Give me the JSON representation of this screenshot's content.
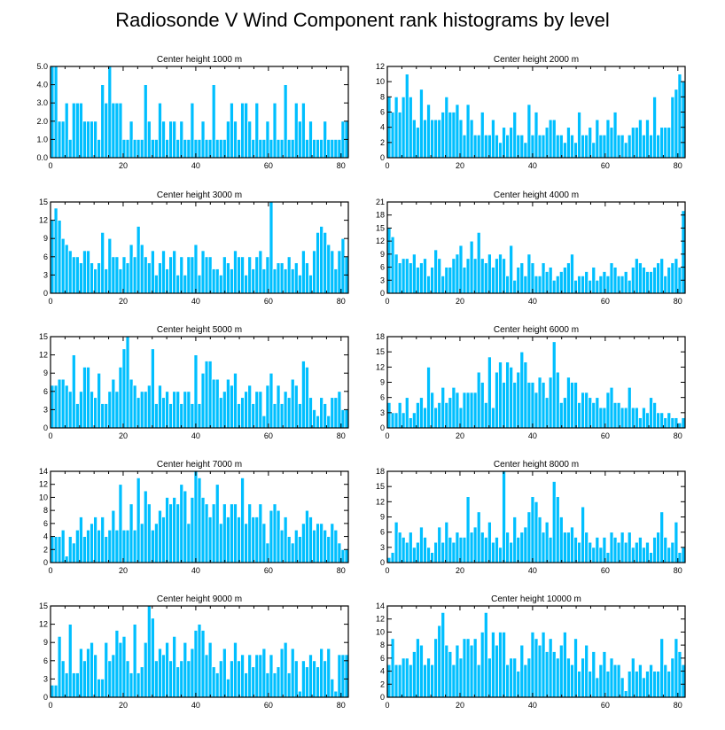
{
  "figure": {
    "title": "Radiosonde V Wind Component rank histograms by level",
    "bar_color": "#00bfff"
  },
  "chart_data": [
    {
      "type": "bar",
      "title": "Center height 1000 m",
      "xlim": [
        0,
        82
      ],
      "xticks": [
        0,
        20,
        40,
        60,
        80
      ],
      "ylim": [
        0,
        5
      ],
      "yticks": [
        "0.0",
        "1.0",
        "2.0",
        "3.0",
        "4.0",
        "5.0"
      ],
      "values": [
        5,
        5,
        2,
        2,
        3,
        1,
        3,
        3,
        3,
        2,
        2,
        2,
        2,
        1,
        4,
        3,
        5,
        3,
        3,
        3,
        1,
        1,
        2,
        1,
        1,
        1,
        4,
        2,
        1,
        1,
        3,
        2,
        1,
        2,
        2,
        1,
        2,
        1,
        1,
        3,
        1,
        1,
        2,
        1,
        1,
        4,
        1,
        1,
        1,
        2,
        3,
        2,
        1,
        3,
        3,
        2,
        1,
        3,
        1,
        1,
        2,
        1,
        3,
        1,
        1,
        4,
        1,
        1,
        3,
        2,
        3,
        1,
        2,
        1,
        1,
        1,
        2,
        1,
        1,
        1,
        1,
        2,
        2
      ]
    },
    {
      "type": "bar",
      "title": "Center height 2000 m",
      "xlim": [
        0,
        82
      ],
      "xticks": [
        0,
        20,
        40,
        60,
        80
      ],
      "ylim": [
        0,
        12
      ],
      "yticks": [
        "0",
        "2",
        "4",
        "6",
        "8",
        "10",
        "12"
      ],
      "values": [
        8,
        6,
        8,
        6,
        8,
        11,
        8,
        5,
        4,
        9,
        5,
        7,
        5,
        5,
        5,
        6,
        8,
        6,
        6,
        7,
        5,
        3,
        7,
        5,
        3,
        3,
        6,
        3,
        3,
        5,
        3,
        2,
        4,
        3,
        4,
        6,
        3,
        3,
        2,
        7,
        3,
        6,
        3,
        3,
        4,
        5,
        5,
        3,
        3,
        2,
        4,
        3,
        2,
        6,
        3,
        3,
        4,
        2,
        5,
        3,
        3,
        5,
        4,
        6,
        3,
        3,
        2,
        3,
        4,
        4,
        5,
        3,
        5,
        3,
        8,
        3,
        4,
        4,
        4,
        8,
        9,
        11,
        10
      ]
    },
    {
      "type": "bar",
      "title": "Center height 3000 m",
      "xlim": [
        0,
        82
      ],
      "xticks": [
        0,
        20,
        40,
        60,
        80
      ],
      "ylim": [
        0,
        15
      ],
      "yticks": [
        "0",
        "3",
        "6",
        "9",
        "12",
        "15"
      ],
      "values": [
        12,
        14,
        12,
        9,
        8,
        7,
        6,
        6,
        5,
        7,
        7,
        5,
        4,
        5,
        10,
        4,
        9,
        6,
        6,
        4,
        6,
        5,
        8,
        6,
        11,
        8,
        6,
        5,
        7,
        3,
        5,
        7,
        4,
        6,
        7,
        3,
        6,
        3,
        6,
        6,
        8,
        3,
        7,
        6,
        6,
        4,
        4,
        3,
        6,
        5,
        4,
        7,
        6,
        6,
        3,
        6,
        4,
        6,
        7,
        4,
        6,
        15,
        4,
        5,
        5,
        4,
        6,
        4,
        5,
        3,
        7,
        5,
        3,
        7,
        10,
        11,
        10,
        8,
        7,
        4,
        7,
        9,
        6
      ]
    },
    {
      "type": "bar",
      "title": "Center height 4000 m",
      "xlim": [
        0,
        82
      ],
      "xticks": [
        0,
        20,
        40,
        60,
        80
      ],
      "ylim": [
        0,
        21
      ],
      "yticks": [
        "0",
        "3",
        "6",
        "9",
        "12",
        "15",
        "18",
        "21"
      ],
      "values": [
        15,
        13,
        9,
        7,
        8,
        8,
        7,
        9,
        6,
        7,
        8,
        4,
        6,
        10,
        8,
        4,
        6,
        6,
        8,
        9,
        11,
        6,
        8,
        12,
        8,
        14,
        8,
        7,
        9,
        6,
        8,
        9,
        8,
        4,
        11,
        3,
        6,
        7,
        4,
        9,
        7,
        4,
        4,
        7,
        5,
        6,
        3,
        4,
        5,
        6,
        7,
        9,
        3,
        4,
        4,
        5,
        3,
        6,
        3,
        4,
        5,
        4,
        7,
        6,
        4,
        4,
        5,
        3,
        6,
        8,
        7,
        6,
        5,
        5,
        6,
        7,
        8,
        4,
        6,
        7,
        8,
        6,
        19
      ]
    },
    {
      "type": "bar",
      "title": "Center height 5000 m",
      "xlim": [
        0,
        82
      ],
      "xticks": [
        0,
        20,
        40,
        60,
        80
      ],
      "ylim": [
        0,
        15
      ],
      "yticks": [
        "0",
        "3",
        "6",
        "9",
        "12",
        "15"
      ],
      "values": [
        7,
        7,
        8,
        8,
        7,
        6,
        12,
        4,
        6,
        10,
        10,
        6,
        5,
        9,
        4,
        4,
        6,
        8,
        6,
        10,
        13,
        15,
        8,
        7,
        5,
        6,
        6,
        7,
        13,
        4,
        7,
        5,
        6,
        4,
        6,
        6,
        4,
        6,
        6,
        4,
        12,
        4,
        9,
        11,
        11,
        8,
        8,
        5,
        6,
        8,
        7,
        9,
        4,
        5,
        6,
        7,
        4,
        6,
        6,
        2,
        7,
        9,
        4,
        7,
        4,
        6,
        5,
        8,
        7,
        4,
        11,
        10,
        5,
        3,
        2,
        5,
        4,
        2,
        5,
        5,
        6,
        3,
        3
      ]
    },
    {
      "type": "bar",
      "title": "Center height 6000 m",
      "xlim": [
        0,
        82
      ],
      "xticks": [
        0,
        20,
        40,
        60,
        80
      ],
      "ylim": [
        0,
        18
      ],
      "yticks": [
        "0",
        "3",
        "6",
        "9",
        "12",
        "15",
        "18"
      ],
      "values": [
        5,
        3,
        3,
        5,
        3,
        6,
        2,
        3,
        5,
        6,
        4,
        12,
        7,
        4,
        5,
        8,
        5,
        6,
        8,
        7,
        4,
        7,
        7,
        7,
        7,
        11,
        9,
        5,
        14,
        4,
        11,
        13,
        9,
        13,
        12,
        9,
        11,
        15,
        13,
        9,
        9,
        7,
        10,
        9,
        6,
        10,
        17,
        11,
        5,
        6,
        10,
        9,
        9,
        5,
        7,
        7,
        6,
        5,
        6,
        4,
        4,
        7,
        8,
        5,
        5,
        4,
        4,
        8,
        4,
        4,
        2,
        4,
        3,
        6,
        5,
        3,
        3,
        2,
        3,
        2,
        2,
        1,
        2
      ]
    },
    {
      "type": "bar",
      "title": "Center height 7000 m",
      "xlim": [
        0,
        82
      ],
      "xticks": [
        0,
        20,
        40,
        60,
        80
      ],
      "ylim": [
        0,
        14
      ],
      "yticks": [
        "0",
        "2",
        "4",
        "6",
        "8",
        "10",
        "12",
        "14"
      ],
      "values": [
        4,
        4,
        4,
        5,
        1,
        4,
        3,
        5,
        7,
        4,
        5,
        6,
        7,
        5,
        7,
        4,
        5,
        8,
        5,
        12,
        5,
        5,
        9,
        5,
        13,
        6,
        11,
        9,
        5,
        6,
        8,
        7,
        10,
        9,
        10,
        9,
        12,
        11,
        6,
        10,
        14,
        13,
        10,
        9,
        7,
        9,
        12,
        6,
        9,
        7,
        9,
        9,
        7,
        13,
        6,
        9,
        7,
        7,
        9,
        6,
        3,
        8,
        9,
        8,
        5,
        7,
        4,
        3,
        5,
        4,
        6,
        8,
        7,
        5,
        6,
        6,
        5,
        4,
        6,
        5,
        3,
        2,
        2
      ]
    },
    {
      "type": "bar",
      "title": "Center height 8000 m",
      "xlim": [
        0,
        82
      ],
      "xticks": [
        0,
        20,
        40,
        60,
        80
      ],
      "ylim": [
        0,
        18
      ],
      "yticks": [
        "0",
        "3",
        "6",
        "9",
        "12",
        "15",
        "18"
      ],
      "values": [
        1,
        2,
        8,
        6,
        5,
        4,
        6,
        3,
        4,
        7,
        5,
        3,
        2,
        4,
        7,
        4,
        8,
        5,
        4,
        6,
        5,
        5,
        13,
        6,
        7,
        10,
        6,
        5,
        8,
        4,
        5,
        3,
        18,
        6,
        4,
        9,
        5,
        6,
        7,
        10,
        13,
        12,
        9,
        6,
        8,
        5,
        16,
        13,
        9,
        6,
        6,
        7,
        5,
        4,
        11,
        6,
        4,
        3,
        5,
        3,
        5,
        2,
        6,
        5,
        4,
        6,
        4,
        6,
        3,
        4,
        5,
        3,
        4,
        2,
        5,
        6,
        10,
        5,
        3,
        4,
        8,
        2,
        3
      ]
    },
    {
      "type": "bar",
      "title": "Center height 9000 m",
      "xlim": [
        0,
        82
      ],
      "xticks": [
        0,
        20,
        40,
        60,
        80
      ],
      "ylim": [
        0,
        15
      ],
      "yticks": [
        "0",
        "3",
        "6",
        "9",
        "12",
        "15"
      ],
      "values": [
        2,
        2,
        10,
        6,
        4,
        12,
        4,
        4,
        8,
        6,
        8,
        9,
        7,
        3,
        3,
        9,
        6,
        7,
        11,
        9,
        10,
        6,
        4,
        12,
        4,
        5,
        9,
        15,
        13,
        6,
        8,
        7,
        9,
        6,
        10,
        5,
        6,
        9,
        6,
        8,
        11,
        12,
        11,
        7,
        9,
        5,
        4,
        6,
        8,
        3,
        6,
        9,
        6,
        7,
        4,
        7,
        5,
        7,
        7,
        8,
        4,
        7,
        4,
        5,
        8,
        9,
        4,
        8,
        6,
        1,
        6,
        5,
        7,
        6,
        5,
        8,
        6,
        8,
        3,
        1,
        7,
        7,
        7
      ]
    },
    {
      "type": "bar",
      "title": "Center height 10000 m",
      "xlim": [
        0,
        82
      ],
      "xticks": [
        0,
        20,
        40,
        60,
        80
      ],
      "ylim": [
        0,
        14
      ],
      "yticks": [
        "0",
        "2",
        "4",
        "6",
        "8",
        "10",
        "12",
        "14"
      ],
      "values": [
        5,
        9,
        5,
        5,
        6,
        6,
        5,
        7,
        9,
        8,
        5,
        6,
        5,
        9,
        11,
        13,
        8,
        7,
        5,
        8,
        6,
        9,
        9,
        8,
        9,
        5,
        10,
        13,
        6,
        10,
        8,
        10,
        10,
        5,
        6,
        6,
        4,
        8,
        5,
        6,
        10,
        9,
        8,
        10,
        7,
        9,
        7,
        6,
        8,
        10,
        6,
        5,
        9,
        4,
        6,
        8,
        4,
        7,
        3,
        5,
        7,
        4,
        6,
        5,
        5,
        3,
        1,
        4,
        6,
        4,
        5,
        3,
        4,
        5,
        4,
        4,
        9,
        5,
        4,
        6,
        9,
        7,
        5
      ]
    }
  ]
}
